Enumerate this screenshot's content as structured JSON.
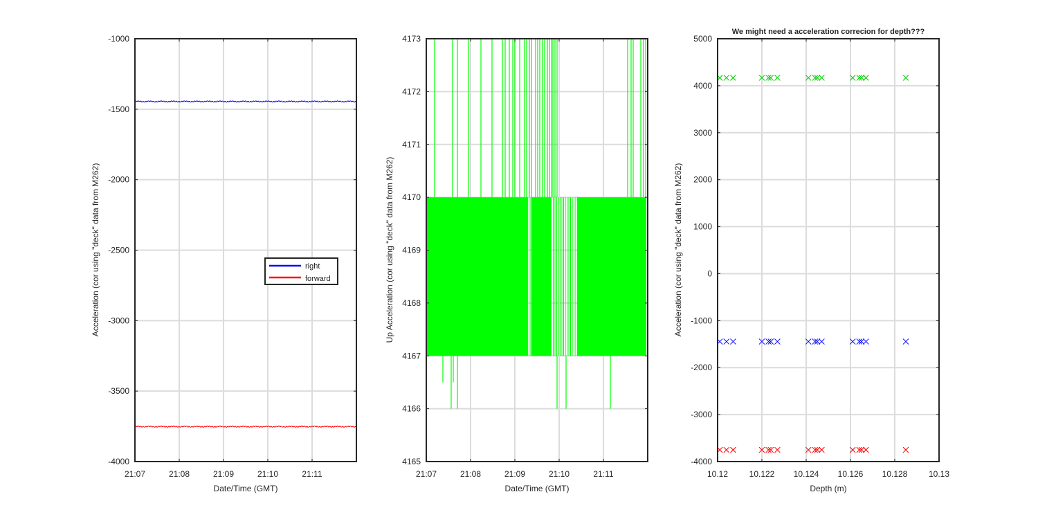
{
  "chart_data": [
    {
      "type": "line",
      "xlabel": "Date/Time (GMT)",
      "ylabel": "Acceleration (cor using \"deck\" data from M262)",
      "xlim": [
        "21:07",
        "21:12"
      ],
      "ylim": [
        -4000,
        -1000
      ],
      "xticks": [
        "21:07",
        "21:08",
        "21:09",
        "21:10",
        "21:11"
      ],
      "yticks": [
        "-1000",
        "-1500",
        "-2000",
        "-2500",
        "-3000",
        "-3500",
        "-4000"
      ],
      "grid": true,
      "legend_position": "center-right",
      "series": [
        {
          "name": "right",
          "color": "#0000ff",
          "approx_value": -1445
        },
        {
          "name": "forward",
          "color": "#ff0000",
          "approx_value": -3752
        }
      ]
    },
    {
      "type": "line",
      "xlabel": "Date/Time (GMT)",
      "ylabel": "Up Acceleration (cor using \"deck\" data from M262)",
      "xlim": [
        "21:07",
        "21:12"
      ],
      "ylim": [
        4165,
        4173
      ],
      "xticks": [
        "21:07",
        "21:08",
        "21:09",
        "21:10",
        "21:11"
      ],
      "yticks": [
        "4173",
        "4172",
        "4171",
        "4170",
        "4169",
        "4168",
        "4167",
        "4166",
        "4165"
      ],
      "grid": true,
      "series": [
        {
          "color": "#00ff00",
          "dense_band": [
            4167,
            4170
          ],
          "spike_min": 4166,
          "spike_max": 4173
        }
      ]
    },
    {
      "type": "scatter",
      "title": "We might need a acceleration correcion for depth???",
      "xlabel": "Depth (m)",
      "ylabel": "Acceleration (cor using \"deck\" data from M262)",
      "xlim": [
        10.12,
        10.13
      ],
      "ylim": [
        -4000,
        5000
      ],
      "xticks": [
        "10.12",
        "10.122",
        "10.124",
        "10.126",
        "10.128",
        "10.13"
      ],
      "yticks": [
        "5000",
        "4000",
        "3000",
        "2000",
        "1000",
        "0",
        "-1000",
        "-2000",
        "-3000",
        "-4000"
      ],
      "grid": true,
      "marker": "x",
      "x": [
        10.1201,
        10.1204,
        10.1207,
        10.122,
        10.1223,
        10.1224,
        10.1227,
        10.1241,
        10.1244,
        10.1245,
        10.1247,
        10.1261,
        10.1264,
        10.1265,
        10.1267,
        10.1285
      ],
      "series": [
        {
          "color": "#00cc00",
          "value": 4170
        },
        {
          "color": "#0000ff",
          "value": -1445
        },
        {
          "color": "#ff0000",
          "value": -3752
        }
      ]
    }
  ]
}
